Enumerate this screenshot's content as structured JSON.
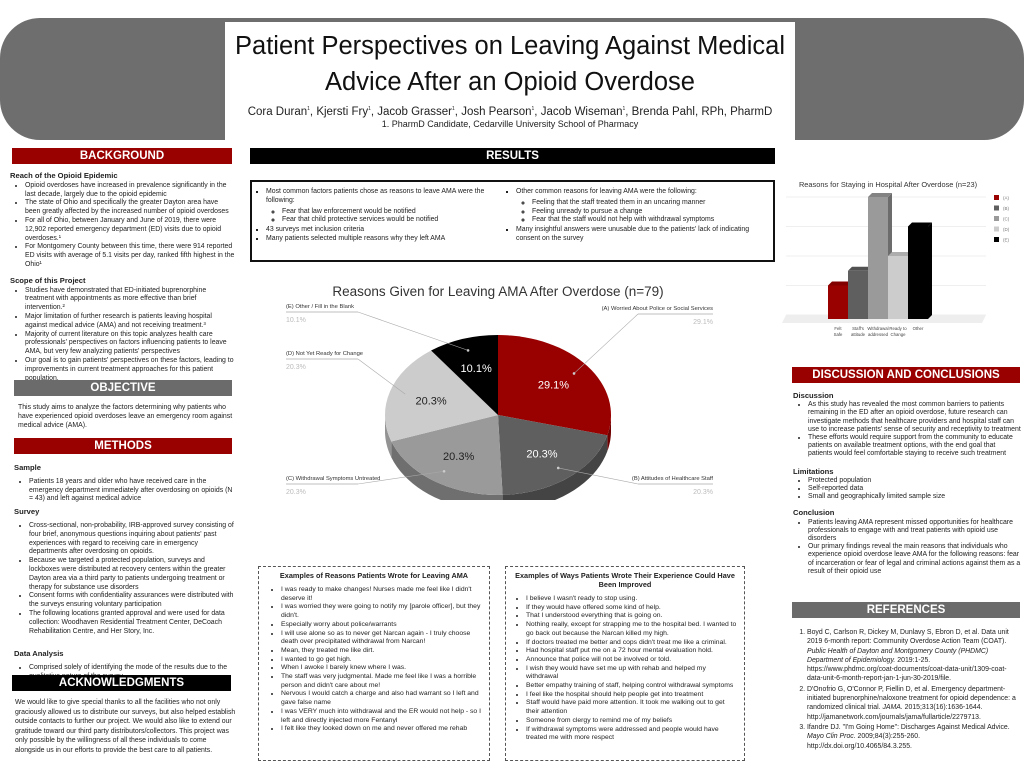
{
  "header": {
    "title_line1": "Patient Perspectives on Leaving Against Medical",
    "title_line2": "Advice After an Opioid Overdose",
    "authors": [
      {
        "name": "Cora Duran",
        "sup": "1"
      },
      {
        "name": "Kjersti Fry",
        "sup": "1"
      },
      {
        "name": "Jacob Grasser",
        "sup": "1"
      },
      {
        "name": "Josh Pearson",
        "sup": "1"
      },
      {
        "name": "Jacob Wiseman",
        "sup": "1"
      },
      {
        "name": "Brenda Pahl, RPh, PharmD",
        "sup": ""
      }
    ],
    "affiliation": "1. PharmD Candidate, Cedarville University School of Pharmacy"
  },
  "colors": {
    "red": "#990000",
    "gray": "#6b6b6b",
    "black": "#000000"
  },
  "background": {
    "heading": "BACKGROUND",
    "sub1": "Reach of the Opioid Epidemic",
    "items1": [
      "Opioid overdoses have increased in prevalence significantly in the last decade, largely due to the opioid epidemic",
      "The state of Ohio and specifically the greater Dayton area have been greatly affected by the increased number of opioid overdoses",
      "For all of Ohio, between January and June of 2019, there were 12,902 reported emergency department (ED) visits due to opioid overdoses.¹",
      "For Montgomery County between this time, there were 914 reported ED visits with average of 5.1 visits per day, ranked fifth highest in the Ohio¹"
    ],
    "sub2": "Scope of this Project",
    "items2": [
      "Studies have demonstrated that ED-initiated buprenorphine treatment with appointments as more effective than brief intervention.²",
      "Major limitation of further research is patients leaving hospital against medical advice (AMA) and not receiving treatment.³",
      "Majority of current literature on this topic analyzes health care professionals' perspectives on factors influencing patients to leave AMA, but very few analyzing patients' perspectives",
      "Our goal is to gain patients' perspectives on these factors, leading to improvements in current treatment approaches for this patient population."
    ]
  },
  "objective": {
    "heading": "OBJECTIVE",
    "text": "This study aims to analyze the factors determining why patients who have experienced opioid overdoses leave an emergency room against medical advice (AMA)."
  },
  "methods": {
    "heading": "METHODS",
    "sub1": "Sample",
    "items1": [
      "Patients 18 years and older who have received care in the emergency department immediately after overdosing on opioids (N = 43) and left against medical advice"
    ],
    "sub2": "Survey",
    "items2": [
      "Cross-sectional, non-probability, IRB-approved survey consisting of four brief, anonymous questions inquiring about patients' past experiences with regard to receiving care in emergency departments after overdosing on opioids.",
      "Because we targeted a protected population, surveys and lockboxes were distributed at recovery centers within the greater Dayton area via a third party to patients undergoing treatment or therapy for substance use disorders",
      "Consent forms with confidentiality assurances were distributed with the surveys ensuring voluntary participation",
      "The following locations granted approval and were used for data collection: Woodhaven Residential Treatment Center, DeCoach Rehabilitation Centre, and Her Story, Inc."
    ],
    "sub3": "Data Analysis",
    "items3": [
      "Comprised solely of identifying the mode of the results due to the qualitative nature of the survey"
    ]
  },
  "acknowledgments": {
    "heading": "ACKNOWLEDGMENTS",
    "text": "We would like to give special thanks to all the facilities who not only graciously allowed us to distribute our surveys, but also helped establish outside contacts to further our project. We would also like to extend our gratitude toward our third party distributors/collectors. This project was only possible by the willingness of all these individuals to come alongside us in our efforts to provide the best care to all patients."
  },
  "results": {
    "heading": "RESULTS",
    "left": {
      "item1": "Most common factors patients chose as reasons to leave AMA were the following:",
      "sub": [
        "Fear that law enforcement would be notified",
        "Fear that child protective services would be notified"
      ],
      "items": [
        "43 surveys met inclusion criteria",
        "Many patients selected multiple reasons why they left AMA"
      ]
    },
    "right": {
      "item1": "Other common reasons for leaving AMA were the following:",
      "sub": [
        "Feeling that the staff treated them in an uncaring manner",
        "Feeling unready to pursue a change",
        "Fear that the staff would not help with withdrawal symptoms"
      ],
      "items": [
        "Many insightful answers were unusable due to the patients' lack of indicating consent on the survey"
      ]
    }
  },
  "chart_data": [
    {
      "type": "pie",
      "title": "Reasons Given for Leaving AMA After Overdose (n=79)",
      "style": "3d",
      "slices": [
        {
          "label": "(A) Worried About Police or Social Services",
          "value": 29.1,
          "display": "29.1%",
          "color": "#990000"
        },
        {
          "label": "(B) Attitudes of Healthcare Staff",
          "value": 20.3,
          "display": "20.3%",
          "color": "#5f5f5f"
        },
        {
          "label": "(C) Withdrawal Symptoms Untreated",
          "value": 20.3,
          "display": "20.3%",
          "color": "#9a9a9a"
        },
        {
          "label": "(D) Not Yet Ready for Change",
          "value": 20.3,
          "display": "20.3%",
          "color": "#cccccc"
        },
        {
          "label": "(E) Other / Fill in the Blank",
          "value": 10.1,
          "display": "10.1%",
          "color": "#000000"
        }
      ]
    },
    {
      "type": "bar",
      "style": "3d",
      "title": "Reasons for Staying in Hospital After Overdose (n=23)",
      "categories": [
        "Felt Safe",
        "Staff's attitude",
        "Withdrawal addressed",
        "Ready to Change",
        "Other"
      ],
      "values": [
        2,
        3,
        8,
        4,
        6
      ],
      "ylim": [
        0,
        8
      ],
      "grid": true,
      "legend_position": "right",
      "legend": [
        "(A)",
        "(B)",
        "(C)",
        "(D)",
        "(E)"
      ],
      "colors": [
        "#990000",
        "#5f5f5f",
        "#9a9a9a",
        "#cccccc",
        "#000000"
      ]
    }
  ],
  "reasons_box": {
    "title": "Examples of Reasons Patients Wrote for Leaving AMA",
    "items": [
      "I was ready to make changes! Nurses made me feel like I didn't deserve it!",
      "I was worried they were going to notify my [parole officer], but they didn't.",
      "Especially worry about police/warrants",
      "I will use alone so as to never get Narcan again - I truly choose death over precipitated withdrawal from Narcan!",
      "Mean, they treated me like dirt.",
      "I wanted to go get high.",
      "When I awoke I barely knew where I was.",
      "The staff was very judgmental. Made me feel like I was a horrible person and didn't care about me!",
      "Nervous I would catch a charge and also had warrant so I left and gave false name",
      "I was VERY much into withdrawal and the ER would not help - so I left and directly injected more Fentanyl",
      "I felt like they looked down on me and never offered me rehab"
    ]
  },
  "improve_box": {
    "title": "Examples of Ways Patients Wrote Their Experience Could Have Been Improved",
    "items": [
      "I believe I wasn't ready to stop using.",
      "If they would have offered some kind of help.",
      "That I understood everything that is going on.",
      "Nothing really, except for strapping me to the hospital bed. I wanted to go back out because the Narcan killed my high.",
      "If doctors treated me better and cops didn't treat me like a criminal.",
      "Had hospital staff put me on a 72 hour mental evaluation hold.",
      "Announce that police will not be involved or told.",
      "I wish they would have set me up with rehab and helped my withdrawal",
      "Better empathy training of staff, helping control withdrawal symptoms",
      "I feel like the hospital should help people get into treatment",
      "Staff would have paid more attention. It took me walking out to get their attention",
      "Someone from clergy to remind me of my beliefs",
      "If withdrawal symptoms were addressed and people would have treated me with more respect"
    ]
  },
  "discussion": {
    "heading": "DISCUSSION AND CONCLUSIONS",
    "sub1": "Discussion",
    "items1": [
      "As this study has revealed the most common barriers to patients remaining in the ED after an opioid overdose, future research can investigate methods that healthcare providers and hospital staff can use to increase patients' sense of security and receptivity to treatment",
      "These efforts would require support from the community to educate patients on available treatment options, with the end goal that patients would feel comfortable staying to receive such treatment"
    ],
    "sub2": "Limitations",
    "items2": [
      "Protected population",
      "Self-reported data",
      "Small and geographically limited sample size"
    ],
    "sub3": "Conclusion",
    "items3": [
      "Patients leaving AMA represent missed opportunities for healthcare professionals to engage with and treat patients with opioid use disorders",
      "Our primary findings reveal the main reasons that individuals who experience opioid overdose leave AMA for the following reasons: fear of incarceration or fear of legal and criminal actions against them as a result of their opioid use"
    ]
  },
  "references": {
    "heading": "REFERENCES",
    "items": [
      {
        "a": "Boyd C, Carlson R, Dickey M, Dunlavy S, Ebron D, et al. Data unit 2019 6-month report: Community Overdose Action Team (COAT). ",
        "i": "Public Health of Dayton and Montgomery County (PHDMC) Department of Epidemiology.",
        "b": " 2019:1-25. https://www.phdmc.org/coat-documents/coat-data-unit/1309-coat-data-unit-6-month-report-jan-1-jun-30-2019/file."
      },
      {
        "a": "D'Onofrio G, O'Connor P, Fiellin D, et al. Emergency department-initiated buprenorphine/naloxone treatment for opioid dependence: a randomized clinical trial. ",
        "i": "JAMA.",
        "b": " 2015;313(16):1636-1644. http://jamanetwork.com/journals/jama/fullarticle/2279713."
      },
      {
        "a": "Ifandre DJ. \"I'm Going Home\": Discharges Against Medical Advice. ",
        "i": "Mayo Clin Proc.",
        "b": " 2009;84(3):255-260. http://dx.doi.org/10.4065/84.3.255."
      }
    ]
  }
}
